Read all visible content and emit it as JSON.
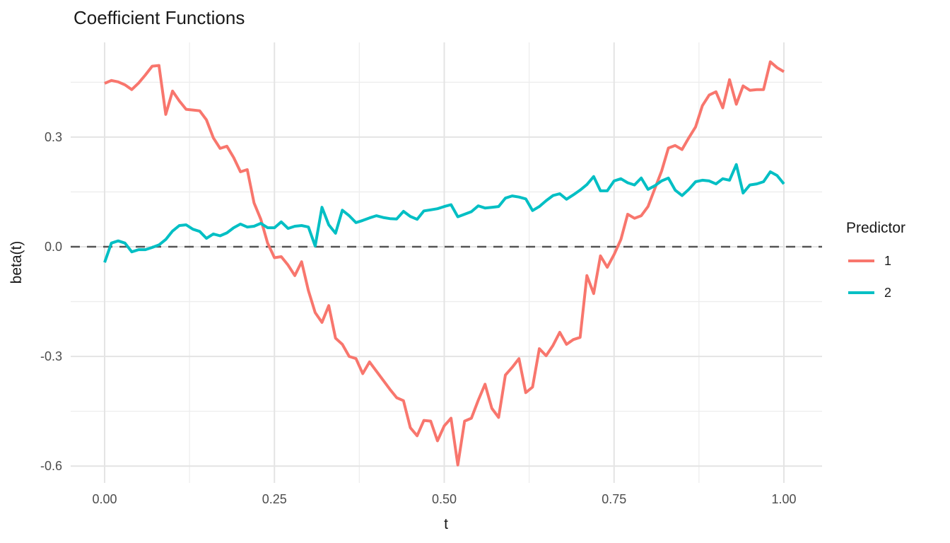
{
  "title": "Coefficient Functions",
  "colors": {
    "series1": "#F8766D",
    "series2": "#00BFC4",
    "grid_major": "#E4E4E4",
    "grid_minor": "#EDEDED",
    "zero_line": "#545454",
    "tick_text": "#4D4D4D",
    "text": "#1A1A1A",
    "background": "#FFFFFF"
  },
  "chart_data": {
    "type": "line",
    "title": "Coefficient Functions",
    "xlabel": "t",
    "ylabel": "beta(t)",
    "xlim": [
      -0.05,
      1.056
    ],
    "ylim": [
      -0.647,
      0.56
    ],
    "grid": "on",
    "x_ticks": [
      {
        "v": 0.0,
        "label": "0.00"
      },
      {
        "v": 0.25,
        "label": "0.25"
      },
      {
        "v": 0.5,
        "label": "0.50"
      },
      {
        "v": 0.75,
        "label": "0.75"
      },
      {
        "v": 1.0,
        "label": "1.00"
      }
    ],
    "x_minor": [
      0.125,
      0.375,
      0.625,
      0.875
    ],
    "y_ticks": [
      {
        "v": 0.3,
        "label": "0.3"
      },
      {
        "v": 0.0,
        "label": "0.0"
      },
      {
        "v": -0.3,
        "label": "-0.3"
      },
      {
        "v": -0.6,
        "label": "-0.6"
      }
    ],
    "y_minor": [
      0.45,
      0.15,
      -0.15,
      -0.45
    ],
    "hline": {
      "y": 0,
      "style": "dashed",
      "color": "#545454"
    },
    "legend": {
      "title": "Predictor",
      "position": "right",
      "items": [
        {
          "label": "1",
          "color": "#F8766D"
        },
        {
          "label": "2",
          "color": "#00BFC4"
        }
      ]
    },
    "x": [
      0,
      0.01,
      0.02,
      0.03,
      0.04,
      0.05,
      0.06,
      0.07,
      0.08,
      0.09,
      0.1,
      0.11,
      0.12,
      0.13,
      0.14,
      0.15,
      0.16,
      0.17,
      0.18,
      0.19,
      0.2,
      0.21,
      0.22,
      0.23,
      0.24,
      0.25,
      0.26,
      0.27,
      0.28,
      0.29,
      0.3,
      0.31,
      0.32,
      0.33,
      0.34,
      0.35,
      0.36,
      0.37,
      0.38,
      0.39,
      0.4,
      0.41,
      0.42,
      0.43,
      0.44,
      0.45,
      0.46,
      0.47,
      0.48,
      0.49,
      0.5,
      0.51,
      0.52,
      0.53,
      0.54,
      0.55,
      0.56,
      0.57,
      0.58,
      0.59,
      0.6,
      0.61,
      0.62,
      0.63,
      0.64,
      0.65,
      0.66,
      0.67,
      0.68,
      0.69,
      0.7,
      0.71,
      0.72,
      0.73,
      0.74,
      0.75,
      0.76,
      0.77,
      0.78,
      0.79,
      0.8,
      0.81,
      0.82,
      0.83,
      0.84,
      0.85,
      0.86,
      0.87,
      0.88,
      0.89,
      0.9,
      0.91,
      0.92,
      0.93,
      0.94,
      0.95,
      0.96,
      0.97,
      0.98,
      0.99,
      1.0
    ],
    "series": [
      {
        "name": "1",
        "color": "#F8766D",
        "values": [
          0.447,
          0.455,
          0.451,
          0.443,
          0.43,
          0.448,
          0.47,
          0.494,
          0.496,
          0.362,
          0.426,
          0.399,
          0.376,
          0.374,
          0.372,
          0.347,
          0.298,
          0.269,
          0.275,
          0.244,
          0.205,
          0.211,
          0.12,
          0.075,
          0.01,
          -0.03,
          -0.027,
          -0.05,
          -0.079,
          -0.041,
          -0.12,
          -0.18,
          -0.207,
          -0.161,
          -0.25,
          -0.267,
          -0.3,
          -0.306,
          -0.347,
          -0.315,
          -0.34,
          -0.365,
          -0.39,
          -0.413,
          -0.421,
          -0.495,
          -0.517,
          -0.475,
          -0.477,
          -0.531,
          -0.49,
          -0.469,
          -0.597,
          -0.477,
          -0.469,
          -0.42,
          -0.376,
          -0.442,
          -0.467,
          -0.351,
          -0.33,
          -0.306,
          -0.399,
          -0.384,
          -0.279,
          -0.298,
          -0.27,
          -0.234,
          -0.267,
          -0.254,
          -0.248,
          -0.079,
          -0.128,
          -0.025,
          -0.056,
          -0.021,
          0.02,
          0.089,
          0.078,
          0.085,
          0.11,
          0.159,
          0.207,
          0.27,
          0.277,
          0.266,
          0.298,
          0.328,
          0.386,
          0.415,
          0.424,
          0.38,
          0.457,
          0.39,
          0.44,
          0.428,
          0.43,
          0.43,
          0.506,
          0.49,
          0.479
        ]
      },
      {
        "name": "2",
        "color": "#00BFC4",
        "values": [
          -0.043,
          0.01,
          0.016,
          0.01,
          -0.014,
          -0.008,
          -0.008,
          -0.002,
          0.005,
          0.02,
          0.043,
          0.058,
          0.06,
          0.048,
          0.042,
          0.023,
          0.035,
          0.03,
          0.038,
          0.052,
          0.062,
          0.054,
          0.056,
          0.064,
          0.052,
          0.052,
          0.068,
          0.05,
          0.056,
          0.058,
          0.054,
          0.002,
          0.108,
          0.06,
          0.037,
          0.1,
          0.085,
          0.066,
          0.072,
          0.079,
          0.085,
          0.08,
          0.077,
          0.076,
          0.097,
          0.083,
          0.075,
          0.098,
          0.101,
          0.104,
          0.11,
          0.115,
          0.082,
          0.089,
          0.096,
          0.112,
          0.106,
          0.108,
          0.11,
          0.133,
          0.139,
          0.136,
          0.131,
          0.099,
          0.11,
          0.126,
          0.14,
          0.145,
          0.13,
          0.142,
          0.155,
          0.17,
          0.192,
          0.153,
          0.153,
          0.18,
          0.186,
          0.175,
          0.169,
          0.188,
          0.157,
          0.167,
          0.18,
          0.188,
          0.155,
          0.14,
          0.157,
          0.178,
          0.182,
          0.18,
          0.172,
          0.186,
          0.182,
          0.225,
          0.147,
          0.169,
          0.172,
          0.178,
          0.205,
          0.195,
          0.172
        ]
      }
    ]
  }
}
